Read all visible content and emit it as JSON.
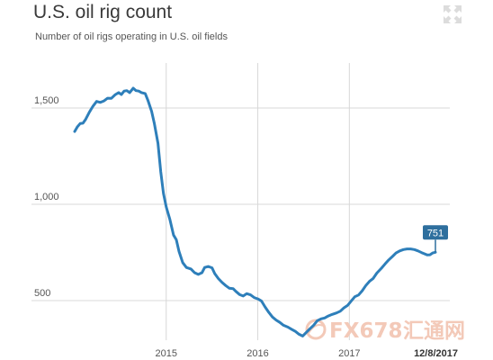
{
  "header": {
    "title": "U.S. oil rig count",
    "subtitle": "Number of oil rigs operating in U.S. oil fields"
  },
  "icons": {
    "expand": "expand-arrows-icon"
  },
  "watermark": {
    "text": "FX678",
    "cn_text": "汇通网"
  },
  "colors": {
    "line": "#2e7fba",
    "callout": "#2e6f9e",
    "grid": "#d8d8d8",
    "watermark": "#f3c9b8"
  },
  "chart_data": {
    "type": "line",
    "title": "U.S. oil rig count",
    "subtitle": "Number of oil rigs operating in U.S. oil fields",
    "xlabel": "",
    "ylabel": "",
    "x_range": [
      2014.0,
      2017.94
    ],
    "ylim": [
      330,
      1650
    ],
    "y_ticks": [
      500,
      1000,
      1500
    ],
    "y_tick_labels": [
      "500",
      "1,000",
      "1,500"
    ],
    "x_ticks": [
      2015,
      2016,
      2017
    ],
    "x_tick_labels": [
      "2015",
      "2016",
      "2017"
    ],
    "end_date_label": "12/8/2017",
    "end_value_label": "751",
    "grid": true,
    "series": [
      {
        "values": [
          [
            2014.0,
            1378
          ],
          [
            2014.03,
            1403
          ],
          [
            2014.06,
            1419
          ],
          [
            2014.09,
            1421
          ],
          [
            2014.12,
            1441
          ],
          [
            2014.16,
            1478
          ],
          [
            2014.2,
            1510
          ],
          [
            2014.24,
            1534
          ],
          [
            2014.28,
            1529
          ],
          [
            2014.32,
            1537
          ],
          [
            2014.36,
            1551
          ],
          [
            2014.4,
            1550
          ],
          [
            2014.44,
            1568
          ],
          [
            2014.48,
            1580
          ],
          [
            2014.51,
            1570
          ],
          [
            2014.54,
            1588
          ],
          [
            2014.57,
            1590
          ],
          [
            2014.6,
            1580
          ],
          [
            2014.64,
            1603
          ],
          [
            2014.67,
            1590
          ],
          [
            2014.7,
            1588
          ],
          [
            2014.73,
            1580
          ],
          [
            2014.77,
            1575
          ],
          [
            2014.8,
            1540
          ],
          [
            2014.84,
            1483
          ],
          [
            2014.87,
            1421
          ],
          [
            2014.91,
            1317
          ],
          [
            2014.94,
            1168
          ],
          [
            2014.97,
            1056
          ],
          [
            2015.0,
            986
          ],
          [
            2015.04,
            922
          ],
          [
            2015.08,
            840
          ],
          [
            2015.11,
            816
          ],
          [
            2015.14,
            755
          ],
          [
            2015.18,
            697
          ],
          [
            2015.22,
            672
          ],
          [
            2015.27,
            664
          ],
          [
            2015.31,
            645
          ],
          [
            2015.35,
            636
          ],
          [
            2015.39,
            645
          ],
          [
            2015.42,
            672
          ],
          [
            2015.46,
            677
          ],
          [
            2015.5,
            670
          ],
          [
            2015.53,
            640
          ],
          [
            2015.57,
            614
          ],
          [
            2015.61,
            594
          ],
          [
            2015.65,
            578
          ],
          [
            2015.69,
            564
          ],
          [
            2015.73,
            562
          ],
          [
            2015.76,
            548
          ],
          [
            2015.8,
            532
          ],
          [
            2015.84,
            524
          ],
          [
            2015.88,
            536
          ],
          [
            2015.92,
            530
          ],
          [
            2015.96,
            516
          ],
          [
            2016.0,
            509
          ],
          [
            2016.04,
            498
          ],
          [
            2016.08,
            467
          ],
          [
            2016.12,
            439
          ],
          [
            2016.16,
            415
          ],
          [
            2016.2,
            399
          ],
          [
            2016.24,
            387
          ],
          [
            2016.28,
            372
          ],
          [
            2016.33,
            362
          ],
          [
            2016.37,
            351
          ],
          [
            2016.41,
            340
          ],
          [
            2016.45,
            325
          ],
          [
            2016.49,
            316
          ],
          [
            2016.53,
            335
          ],
          [
            2016.57,
            354
          ],
          [
            2016.61,
            372
          ],
          [
            2016.65,
            396
          ],
          [
            2016.69,
            405
          ],
          [
            2016.73,
            410
          ],
          [
            2016.77,
            420
          ],
          [
            2016.81,
            428
          ],
          [
            2016.86,
            436
          ],
          [
            2016.9,
            445
          ],
          [
            2016.94,
            462
          ],
          [
            2016.98,
            475
          ],
          [
            2017.02,
            498
          ],
          [
            2017.06,
            520
          ],
          [
            2017.1,
            529
          ],
          [
            2017.14,
            551
          ],
          [
            2017.18,
            578
          ],
          [
            2017.22,
            600
          ],
          [
            2017.26,
            615
          ],
          [
            2017.3,
            643
          ],
          [
            2017.35,
            668
          ],
          [
            2017.39,
            690
          ],
          [
            2017.43,
            711
          ],
          [
            2017.47,
            729
          ],
          [
            2017.51,
            747
          ],
          [
            2017.55,
            758
          ],
          [
            2017.59,
            765
          ],
          [
            2017.63,
            768
          ],
          [
            2017.67,
            768
          ],
          [
            2017.71,
            765
          ],
          [
            2017.75,
            758
          ],
          [
            2017.79,
            749
          ],
          [
            2017.82,
            743
          ],
          [
            2017.85,
            737
          ],
          [
            2017.88,
            738
          ],
          [
            2017.91,
            747
          ],
          [
            2017.94,
            751
          ]
        ]
      }
    ]
  }
}
